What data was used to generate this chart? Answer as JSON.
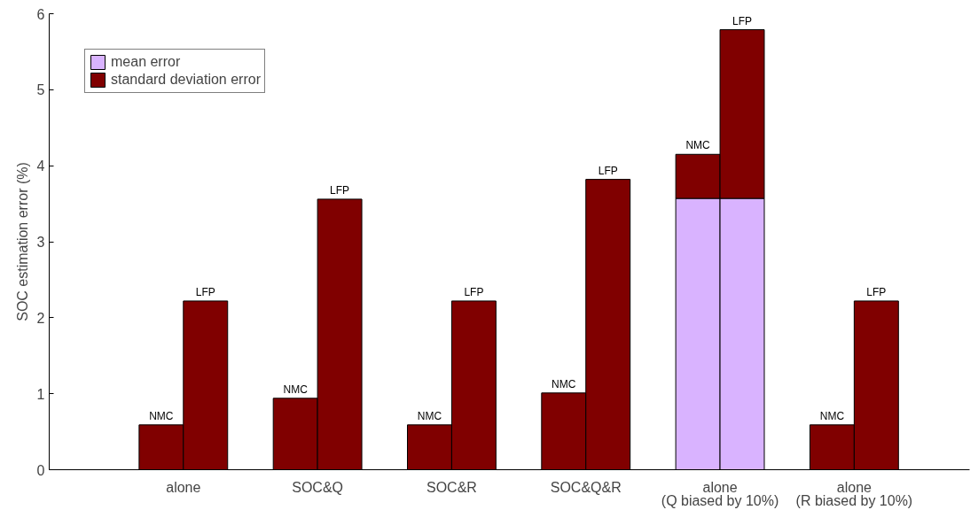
{
  "chart_data": {
    "type": "bar",
    "stacked": true,
    "ylabel": "SOC estimation error (%)",
    "categories": [
      "NMC",
      "LFP",
      "NMC",
      "LFP",
      "NMC",
      "LFP",
      "NMC",
      "LFP",
      "NMC",
      "LFP",
      "NMC",
      "LFP"
    ],
    "series": [
      {
        "name": "mean error",
        "color": "#d9b3ff",
        "values": [
          0,
          0,
          0,
          0,
          0,
          0,
          0,
          0,
          3.57,
          3.57,
          0,
          0
        ]
      },
      {
        "name": "standard deviation error",
        "color": "#800000",
        "values": [
          0.59,
          2.22,
          0.94,
          3.56,
          0.59,
          2.22,
          1.01,
          3.82,
          0.58,
          2.22,
          0.59,
          2.22
        ]
      }
    ],
    "annotations": [
      "alone",
      "SOC&Q",
      "SOC&R",
      "SOC&Q&R",
      "alone\n(Q biased by 10%)",
      "alone\n(R biased by 10%)"
    ],
    "ylim": [
      0,
      6
    ],
    "yticks": [
      0,
      1,
      2,
      3,
      4,
      5,
      6
    ],
    "grid": false,
    "legend": "top left"
  }
}
